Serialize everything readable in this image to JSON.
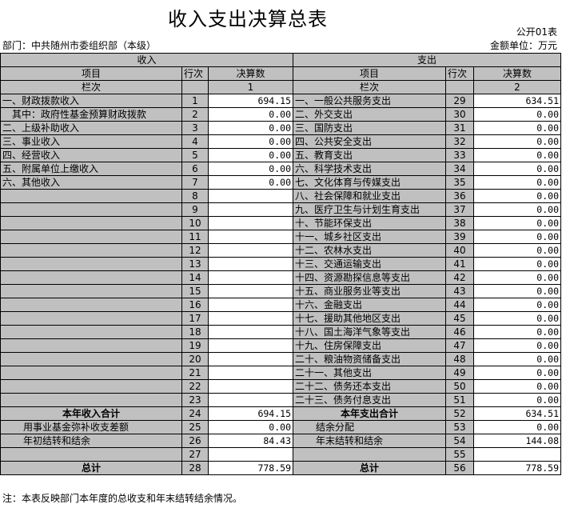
{
  "title": "收入支出决算总表",
  "form_no": "公开01表",
  "department": "部门：中共随州市委组织部（本级）",
  "unit": "金额单位：万元",
  "headers": {
    "income": "收入",
    "expense": "支出",
    "item": "项目",
    "row_no": "行次",
    "amount": "决算数",
    "column": "栏次",
    "col1": "1",
    "col2": "2"
  },
  "rows": [
    {
      "in_item": "一、财政拨款收入",
      "in_no": "1",
      "in_amt": "694.15",
      "ex_item": "一、一般公共服务支出",
      "ex_no": "29",
      "ex_amt": "634.51"
    },
    {
      "in_item": "其中：政府性基金预算财政拨款",
      "in_no": "2",
      "in_amt": "0.00",
      "ex_item": "二、外交支出",
      "ex_no": "30",
      "ex_amt": "0.00"
    },
    {
      "in_item": "二、上级补助收入",
      "in_no": "3",
      "in_amt": "0.00",
      "ex_item": "三、国防支出",
      "ex_no": "31",
      "ex_amt": "0.00"
    },
    {
      "in_item": "三、事业收入",
      "in_no": "4",
      "in_amt": "0.00",
      "ex_item": "四、公共安全支出",
      "ex_no": "32",
      "ex_amt": "0.00"
    },
    {
      "in_item": "四、经营收入",
      "in_no": "5",
      "in_amt": "0.00",
      "ex_item": "五、教育支出",
      "ex_no": "33",
      "ex_amt": "0.00"
    },
    {
      "in_item": "五、附属单位上缴收入",
      "in_no": "6",
      "in_amt": "0.00",
      "ex_item": "六、科学技术支出",
      "ex_no": "34",
      "ex_amt": "0.00"
    },
    {
      "in_item": "六、其他收入",
      "in_no": "7",
      "in_amt": "0.00",
      "ex_item": "七、文化体育与传媒支出",
      "ex_no": "35",
      "ex_amt": "0.00"
    },
    {
      "in_item": "",
      "in_no": "8",
      "in_amt": "",
      "ex_item": "八、社会保障和就业支出",
      "ex_no": "36",
      "ex_amt": "0.00"
    },
    {
      "in_item": "",
      "in_no": "9",
      "in_amt": "",
      "ex_item": "九、医疗卫生与计划生育支出",
      "ex_no": "37",
      "ex_amt": "0.00"
    },
    {
      "in_item": "",
      "in_no": "10",
      "in_amt": "",
      "ex_item": "十、节能环保支出",
      "ex_no": "38",
      "ex_amt": "0.00"
    },
    {
      "in_item": "",
      "in_no": "11",
      "in_amt": "",
      "ex_item": "十一、城乡社区支出",
      "ex_no": "39",
      "ex_amt": "0.00"
    },
    {
      "in_item": "",
      "in_no": "12",
      "in_amt": "",
      "ex_item": "十二、农林水支出",
      "ex_no": "40",
      "ex_amt": "0.00"
    },
    {
      "in_item": "",
      "in_no": "13",
      "in_amt": "",
      "ex_item": "十三、交通运输支出",
      "ex_no": "41",
      "ex_amt": "0.00"
    },
    {
      "in_item": "",
      "in_no": "14",
      "in_amt": "",
      "ex_item": "十四、资源勘探信息等支出",
      "ex_no": "42",
      "ex_amt": "0.00"
    },
    {
      "in_item": "",
      "in_no": "15",
      "in_amt": "",
      "ex_item": "十五、商业服务业等支出",
      "ex_no": "43",
      "ex_amt": "0.00"
    },
    {
      "in_item": "",
      "in_no": "16",
      "in_amt": "",
      "ex_item": "十六、金融支出",
      "ex_no": "44",
      "ex_amt": "0.00"
    },
    {
      "in_item": "",
      "in_no": "17",
      "in_amt": "",
      "ex_item": "十七、援助其他地区支出",
      "ex_no": "45",
      "ex_amt": "0.00"
    },
    {
      "in_item": "",
      "in_no": "18",
      "in_amt": "",
      "ex_item": "十八、国土海洋气象等支出",
      "ex_no": "46",
      "ex_amt": "0.00"
    },
    {
      "in_item": "",
      "in_no": "19",
      "in_amt": "",
      "ex_item": "十九、住房保障支出",
      "ex_no": "47",
      "ex_amt": "0.00"
    },
    {
      "in_item": "",
      "in_no": "20",
      "in_amt": "",
      "ex_item": "二十、粮油物资储备支出",
      "ex_no": "48",
      "ex_amt": "0.00"
    },
    {
      "in_item": "",
      "in_no": "21",
      "in_amt": "",
      "ex_item": "二十一、其他支出",
      "ex_no": "49",
      "ex_amt": "0.00"
    },
    {
      "in_item": "",
      "in_no": "22",
      "in_amt": "",
      "ex_item": "二十二、债务还本支出",
      "ex_no": "50",
      "ex_amt": "0.00"
    },
    {
      "in_item": "",
      "in_no": "23",
      "in_amt": "",
      "ex_item": "二十三、债务付息支出",
      "ex_no": "51",
      "ex_amt": "0.00"
    },
    {
      "in_item": "本年收入合计",
      "in_no": "24",
      "in_amt": "694.15",
      "ex_item": "本年支出合计",
      "ex_no": "52",
      "ex_amt": "634.51",
      "style": "b"
    },
    {
      "in_item": "用事业基金弥补收支差额",
      "in_no": "25",
      "in_amt": "0.00",
      "ex_item": "结余分配",
      "ex_no": "53",
      "ex_amt": "0.00",
      "style": "i"
    },
    {
      "in_item": "年初结转和结余",
      "in_no": "26",
      "in_amt": "84.43",
      "ex_item": "年末结转和结余",
      "ex_no": "54",
      "ex_amt": "144.08",
      "style": "i"
    },
    {
      "in_item": "",
      "in_no": "27",
      "in_amt": "",
      "ex_item": "",
      "ex_no": "55",
      "ex_amt": ""
    },
    {
      "in_item": "总计",
      "in_no": "28",
      "in_amt": "778.59",
      "ex_item": "总计",
      "ex_no": "56",
      "ex_amt": "778.59",
      "style": "b"
    }
  ],
  "note": "注：本表反映部门本年度的总收支和年末结转结余情况。"
}
